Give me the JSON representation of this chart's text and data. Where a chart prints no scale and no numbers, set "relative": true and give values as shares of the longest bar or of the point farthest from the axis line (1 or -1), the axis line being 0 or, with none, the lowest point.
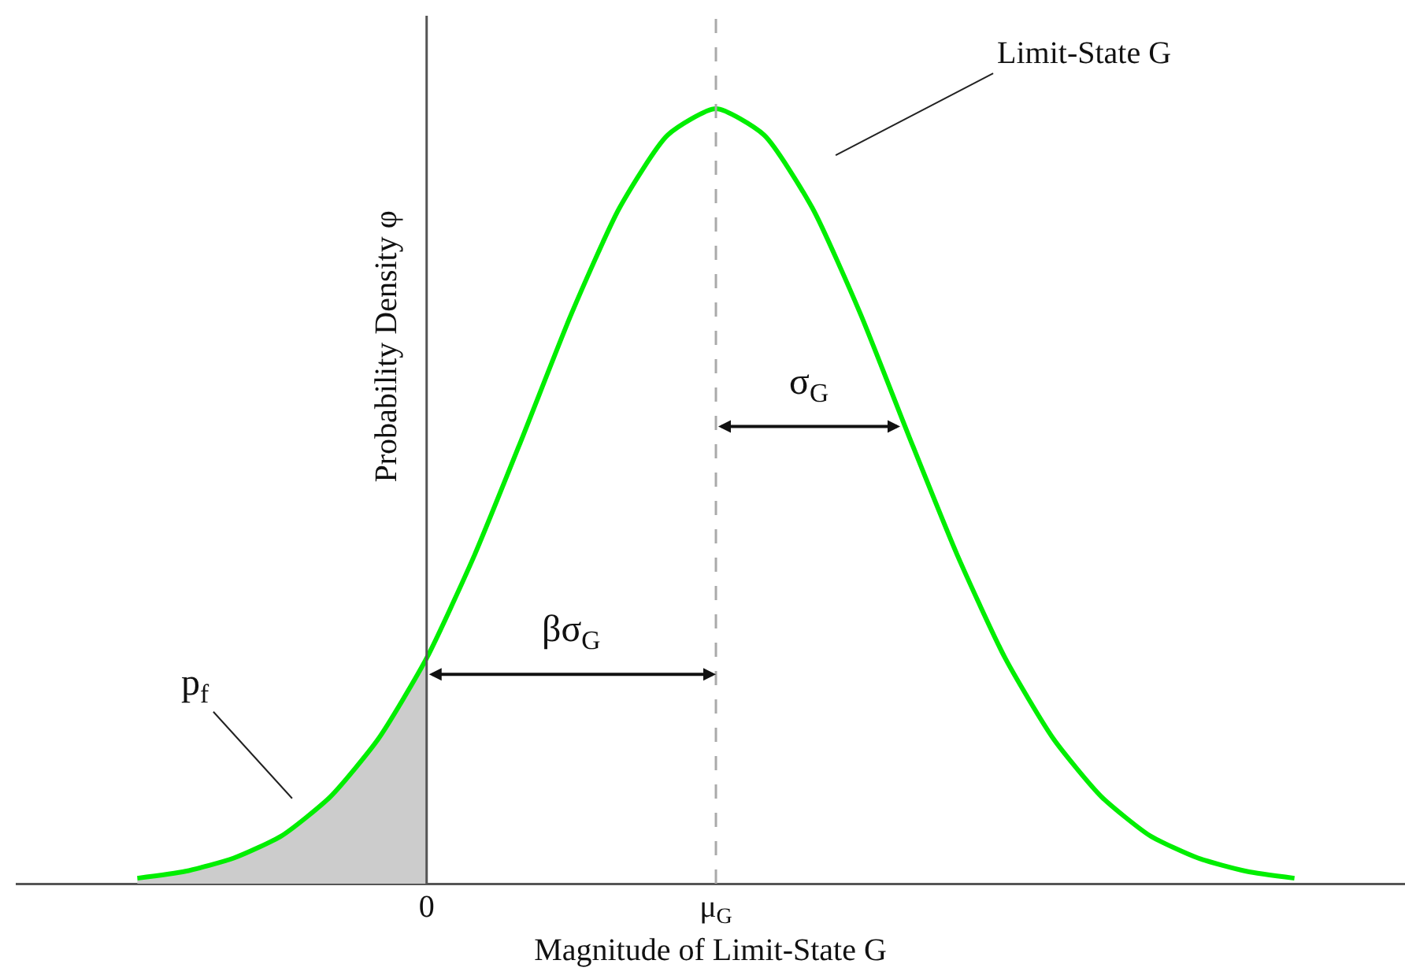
{
  "chart_data": {
    "type": "line",
    "relative": true,
    "xlabel": "Magnitude of Limit-State G",
    "ylabel": "Probability Density φ",
    "categories": [
      null,
      null,
      null,
      null,
      null,
      null,
      "0",
      null,
      null,
      null,
      null,
      null,
      "μ$_{G}$",
      null,
      null,
      null,
      null,
      null,
      null,
      null,
      null,
      null,
      null,
      null,
      null
    ],
    "series": [
      {
        "color": "#00ee00",
        "values": [
          0.007,
          0.016,
          0.033,
          0.062,
          0.112,
          0.187,
          0.291,
          0.425,
          0.578,
          0.735,
          0.872,
          0.966,
          1,
          0.966,
          0.872,
          0.735,
          0.578,
          0.425,
          0.291,
          0.187,
          0.112,
          0.062,
          0.033,
          0.016,
          0.007
        ]
      },
      {
        "type": "area",
        "color": "#cccccc",
        "values": [
          0.007,
          0.016,
          0.033,
          0.062,
          0.112,
          0.187,
          0.291,
          null,
          null,
          null,
          null,
          null,
          null,
          null,
          null,
          null,
          null,
          null,
          null,
          null,
          null,
          null,
          null,
          null,
          null
        ]
      }
    ],
    "ref_lines": [
      {
        "axis": "x",
        "value": "μ$_{G}$",
        "color": "#aaaaaa",
        "line_style": "dashed"
      }
    ],
    "annotations": [
      "Limit-State G",
      "σ$_{G}$",
      "βσ$_{G}$",
      "p$_{f}$"
    ],
    "grid": false
  }
}
